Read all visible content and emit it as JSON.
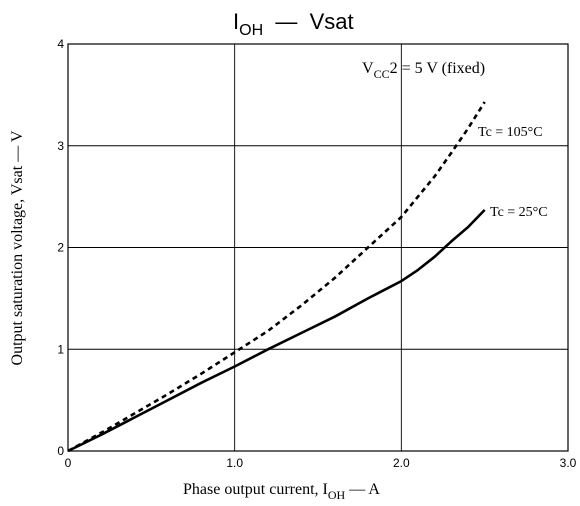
{
  "chart_data": {
    "type": "line",
    "title": {
      "main": "I",
      "sub": "OH",
      "rest": "  —  Vsat"
    },
    "xlabel": {
      "pre": "Phase output current, I",
      "sub": "OH",
      "post": " — A"
    },
    "ylabel": "Output saturation voltage, Vsat — V",
    "xlim": [
      0,
      3.0
    ],
    "ylim": [
      0,
      4
    ],
    "x_ticks": [
      {
        "value": 0,
        "label": "0"
      },
      {
        "value": 1.0,
        "label": "1.0"
      },
      {
        "value": 2.0,
        "label": "2.0"
      },
      {
        "value": 3.0,
        "label": "3.0"
      }
    ],
    "y_ticks": [
      {
        "value": 0,
        "label": "0"
      },
      {
        "value": 1,
        "label": "1"
      },
      {
        "value": 2,
        "label": "2"
      },
      {
        "value": 3,
        "label": "3"
      },
      {
        "value": 4,
        "label": "4"
      }
    ],
    "grid": true,
    "condition": {
      "pre": "V",
      "sub": "CC",
      "post": "2 = 5 V (fixed)"
    },
    "series": [
      {
        "name": "Tc = 25°C",
        "style": "solid",
        "color": "#000000",
        "x": [
          0,
          0.2,
          0.4,
          0.6,
          0.8,
          1.0,
          1.2,
          1.4,
          1.6,
          1.8,
          2.0,
          2.1,
          2.2,
          2.3,
          2.4,
          2.5
        ],
        "y": [
          0,
          0.16,
          0.33,
          0.5,
          0.67,
          0.83,
          1.0,
          1.16,
          1.32,
          1.5,
          1.67,
          1.78,
          1.91,
          2.06,
          2.2,
          2.37
        ]
      },
      {
        "name": "Tc = 105°C",
        "style": "dashed",
        "color": "#000000",
        "x": [
          0,
          0.2,
          0.4,
          0.6,
          0.8,
          1.0,
          1.2,
          1.4,
          1.6,
          1.8,
          2.0,
          2.1,
          2.2,
          2.3,
          2.4,
          2.5
        ],
        "y": [
          0,
          0.18,
          0.37,
          0.56,
          0.76,
          0.97,
          1.18,
          1.43,
          1.7,
          2.0,
          2.3,
          2.5,
          2.7,
          2.93,
          3.17,
          3.43
        ]
      }
    ]
  }
}
